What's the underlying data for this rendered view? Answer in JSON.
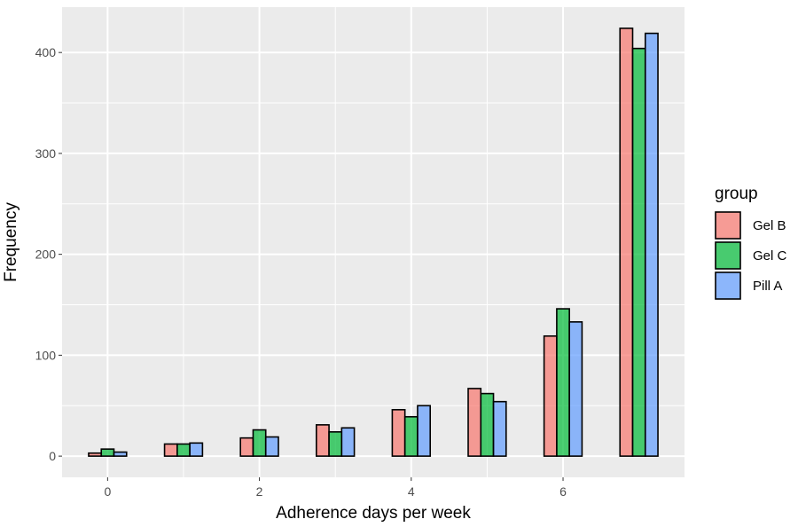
{
  "chart_data": {
    "type": "bar",
    "title": "",
    "xlabel": "Adherence days per week",
    "ylabel": "Frequency",
    "categories": [
      0,
      1,
      2,
      3,
      4,
      5,
      6,
      7
    ],
    "x_ticks": [
      {
        "value": 0,
        "label": "0"
      },
      {
        "value": 2,
        "label": "2"
      },
      {
        "value": 4,
        "label": "4"
      },
      {
        "value": 6,
        "label": "6"
      }
    ],
    "y_ticks": [
      {
        "value": 0,
        "label": "0"
      },
      {
        "value": 100,
        "label": "100"
      },
      {
        "value": 200,
        "label": "200"
      },
      {
        "value": 300,
        "label": "300"
      },
      {
        "value": 400,
        "label": "400"
      }
    ],
    "xlim": [
      -0.6,
      7.6
    ],
    "ylim": [
      -21,
      445
    ],
    "grid": true,
    "legend": {
      "title": "group",
      "position": "right"
    },
    "series": [
      {
        "name": "Gel B",
        "color": "#F8766D",
        "values": [
          3,
          12,
          18,
          31,
          46,
          67,
          119,
          424
        ]
      },
      {
        "name": "Gel C",
        "color": "#00BA38",
        "values": [
          7,
          12,
          26,
          24,
          39,
          62,
          146,
          404
        ]
      },
      {
        "name": "Pill A",
        "color": "#619CFF",
        "values": [
          4,
          13,
          19,
          28,
          50,
          54,
          133,
          419
        ]
      }
    ]
  }
}
